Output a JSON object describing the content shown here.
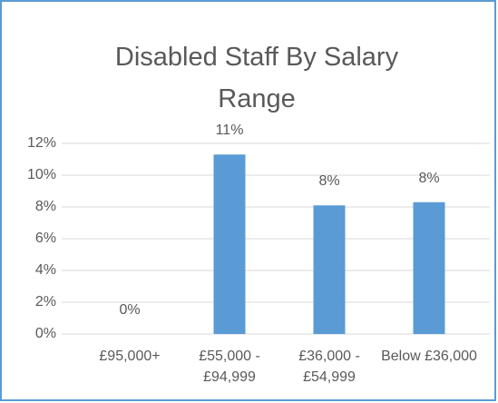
{
  "chart_data": {
    "type": "bar",
    "title": "Disabled Staff By Salary Range",
    "categories": [
      "£95,000+",
      "£55,000 - £94,999",
      "£36,000 - £54,999",
      "Below £36,000"
    ],
    "values": [
      0,
      11.3,
      8.1,
      8.3
    ],
    "value_labels": [
      "0%",
      "11%",
      "8%",
      "8%"
    ],
    "color": "#5b9bd5",
    "ylim": [
      0,
      12
    ],
    "yticks": [
      {
        "value": 0,
        "label": "0%"
      },
      {
        "value": 2,
        "label": "2%"
      },
      {
        "value": 4,
        "label": "4%"
      },
      {
        "value": 6,
        "label": "6%"
      },
      {
        "value": 8,
        "label": "8%"
      },
      {
        "value": 10,
        "label": "10%"
      },
      {
        "value": 12,
        "label": "12%"
      }
    ],
    "grid": true
  }
}
